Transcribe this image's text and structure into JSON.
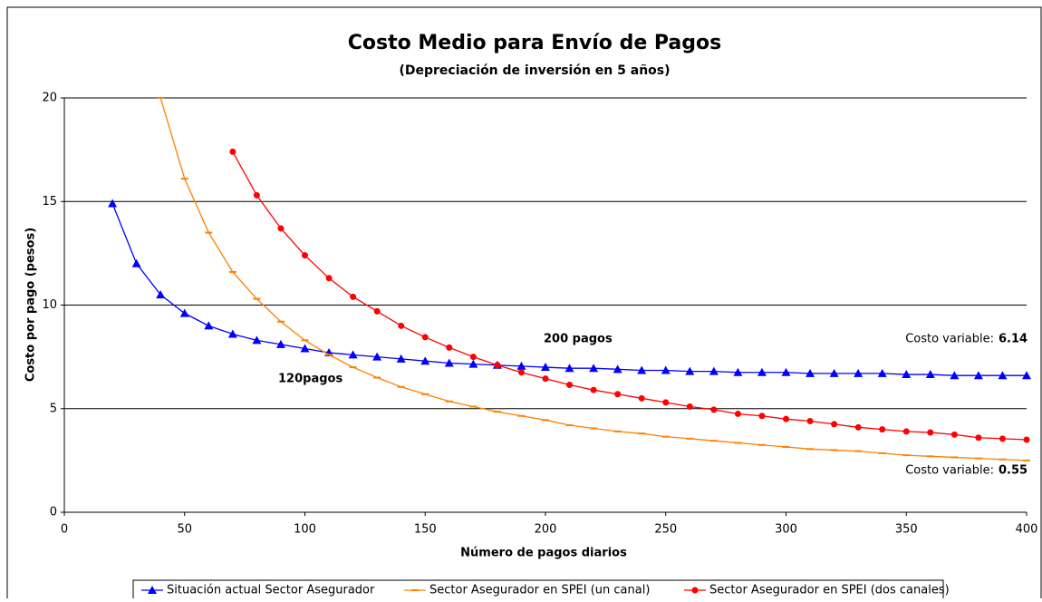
{
  "chart_data": {
    "type": "line",
    "title": "Costo Medio para Envío de Pagos",
    "subtitle": "(Depreciación de inversión en 5 años)",
    "xlabel": "Número de pagos diarios",
    "ylabel": "Costo por pago (pesos)",
    "x": [
      20,
      30,
      40,
      50,
      60,
      70,
      80,
      90,
      100,
      110,
      120,
      130,
      140,
      150,
      160,
      170,
      180,
      190,
      200,
      210,
      220,
      230,
      240,
      250,
      260,
      270,
      280,
      290,
      300,
      310,
      320,
      330,
      340,
      350,
      360,
      370,
      380,
      390,
      400
    ],
    "series": [
      {
        "name": "Situación actual Sector Asegurador",
        "color": "#0000ff",
        "marker": "triangle",
        "values": [
          14.9,
          12.0,
          10.5,
          9.6,
          9.0,
          8.6,
          8.3,
          8.1,
          7.9,
          7.7,
          7.6,
          7.5,
          7.4,
          7.3,
          7.2,
          7.15,
          7.1,
          7.05,
          7.0,
          6.95,
          6.95,
          6.9,
          6.85,
          6.85,
          6.8,
          6.8,
          6.75,
          6.75,
          6.75,
          6.7,
          6.7,
          6.7,
          6.7,
          6.65,
          6.65,
          6.6,
          6.6,
          6.6,
          6.6
        ]
      },
      {
        "name": "Sector Asegurador en SPEI (un canal)",
        "color": "#ff8000",
        "marker": "dash",
        "values": [
          null,
          null,
          20,
          16.1,
          13.5,
          11.6,
          10.3,
          9.2,
          8.3,
          7.6,
          7.0,
          6.5,
          6.05,
          5.7,
          5.35,
          5.1,
          4.85,
          4.65,
          4.45,
          4.2,
          4.05,
          3.9,
          3.8,
          3.65,
          3.55,
          3.45,
          3.35,
          3.25,
          3.15,
          3.05,
          3.0,
          2.95,
          2.85,
          2.75,
          2.7,
          2.65,
          2.6,
          2.55,
          2.5
        ]
      },
      {
        "name": "Sector Asegurador en SPEI (dos canales)",
        "color": "#ff0000",
        "marker": "circle",
        "values": [
          null,
          null,
          null,
          null,
          null,
          17.4,
          15.3,
          13.7,
          12.4,
          11.3,
          10.4,
          9.7,
          9.0,
          8.45,
          7.95,
          7.5,
          7.1,
          6.75,
          6.45,
          6.15,
          5.9,
          5.7,
          5.5,
          5.3,
          5.1,
          4.95,
          4.75,
          4.65,
          4.5,
          4.4,
          4.25,
          4.1,
          4.0,
          3.9,
          3.85,
          3.75,
          3.6,
          3.55,
          3.5
        ]
      }
    ],
    "xlim": [
      0,
      400
    ],
    "xticks": [
      0,
      50,
      100,
      150,
      200,
      250,
      300,
      350,
      400
    ],
    "ylim": [
      0,
      20
    ],
    "yticks": [
      0,
      5,
      10,
      15,
      20
    ],
    "grid": true,
    "legend": "bottom",
    "annotations": [
      {
        "text": "200 pagos"
      },
      {
        "text": "120pagos"
      },
      {
        "text": "Costo variable:",
        "bold": "6.14"
      },
      {
        "text": "Costo variable:",
        "bold": "0.55"
      }
    ]
  }
}
